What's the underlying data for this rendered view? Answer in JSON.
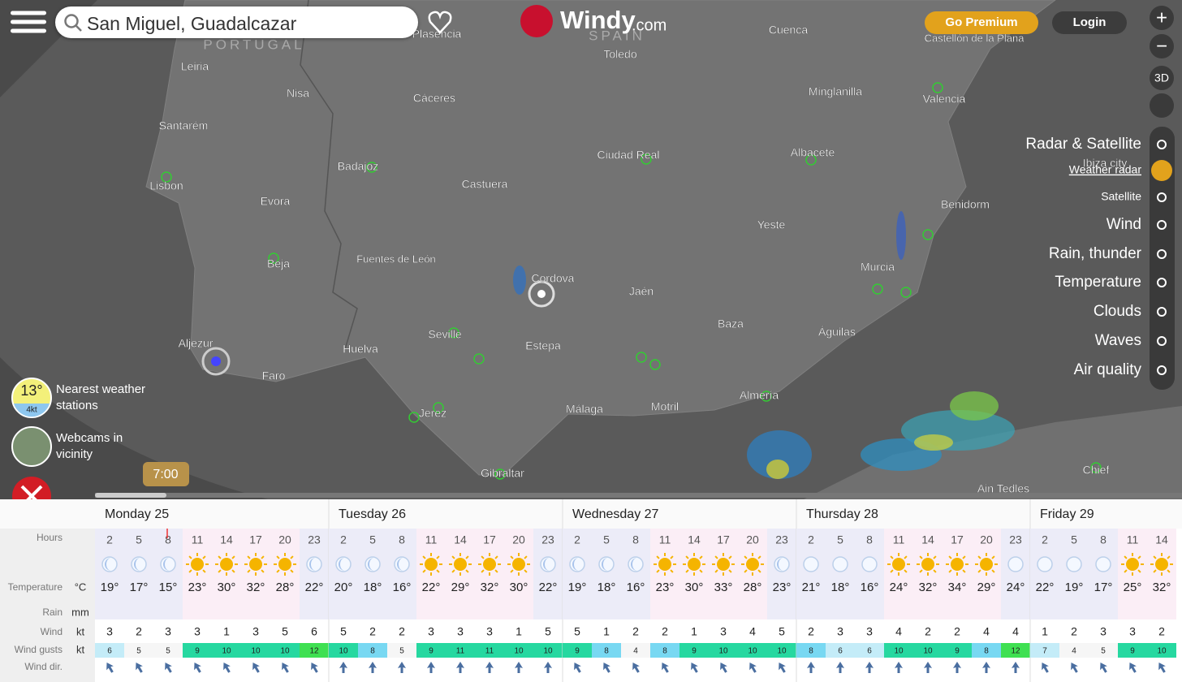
{
  "header": {
    "search": "San Miguel, Guadalcazar",
    "logo": "Windy",
    "logo_suffix": ".com",
    "premium": "Go Premium",
    "login": "Login"
  },
  "map_controls": {
    "view3d": "3D"
  },
  "layers": [
    "Radar & Satellite",
    "Weather radar",
    "Satellite",
    "Wind",
    "Rain, thunder",
    "Temperature",
    "Clouds",
    "Waves",
    "Air quality"
  ],
  "country_labels": [
    "PORTUGAL",
    "SPAIN"
  ],
  "map_labels": [
    "Plasencia",
    "Toledo",
    "Cuenca",
    "Castellón de la Plana",
    "Leiria",
    "Nisa",
    "Cáceres",
    "Minglanilla",
    "Valencia",
    "Santarém",
    "Ciudad Real",
    "Albacete",
    "Ibiza city",
    "Badajoz",
    "Lisbon",
    "Castuera",
    "Evora",
    "Benidorm",
    "Yeste",
    "Beja",
    "Fuentes de León",
    "Murcia",
    "Cordova",
    "Jaén",
    "Baza",
    "Águilas",
    "Aljezur",
    "Seville",
    "Huelva",
    "Estepa",
    "Faro",
    "Jerez",
    "Málaga",
    "Motril",
    "Almería",
    "Gibraltar",
    "Chief",
    "Ain Tedles"
  ],
  "widgets": {
    "temp": "13°",
    "wind": "4kt",
    "stations": "Nearest weather stations",
    "webcams": "Webcams in vicinity"
  },
  "timeline": {
    "time": "7:00"
  },
  "forecast": {
    "rows": [
      {
        "label": "Hours"
      },
      {
        "label": "Temperature",
        "unit": "°C"
      },
      {
        "label": "Rain",
        "unit": "mm"
      },
      {
        "label": "Wind",
        "unit": "kt"
      },
      {
        "label": "Wind gusts",
        "unit": "kt"
      },
      {
        "label": "Wind dir."
      }
    ],
    "days": [
      {
        "title": "Monday 25",
        "hours": [
          2,
          5,
          8,
          11,
          14,
          17,
          20,
          23
        ],
        "sky": [
          "moon",
          "moon",
          "moon",
          "sun",
          "sun",
          "sun",
          "sun",
          "moon"
        ],
        "temperature": [
          "19°",
          "17°",
          "15°",
          "23°",
          "30°",
          "32°",
          "28°",
          "22°"
        ],
        "wind": [
          3,
          2,
          3,
          3,
          1,
          3,
          5,
          6
        ],
        "gusts": [
          6,
          5,
          5,
          9,
          10,
          10,
          10,
          12
        ]
      },
      {
        "title": "Tuesday 26",
        "hours": [
          2,
          5,
          8,
          11,
          14,
          17,
          20,
          23
        ],
        "sky": [
          "moon",
          "moon",
          "moon",
          "sun",
          "sun",
          "sun",
          "sun",
          "moon"
        ],
        "temperature": [
          "20°",
          "18°",
          "16°",
          "22°",
          "29°",
          "32°",
          "30°",
          "22°"
        ],
        "wind": [
          5,
          2,
          2,
          3,
          3,
          3,
          1,
          5
        ],
        "gusts": [
          10,
          8,
          5,
          9,
          11,
          11,
          10,
          10
        ]
      },
      {
        "title": "Wednesday 27",
        "hours": [
          2,
          5,
          8,
          11,
          14,
          17,
          20,
          23
        ],
        "sky": [
          "moon",
          "moon",
          "moon",
          "sun",
          "sun",
          "sun",
          "sun",
          "moon"
        ],
        "temperature": [
          "19°",
          "18°",
          "16°",
          "23°",
          "30°",
          "33°",
          "28°",
          "23°"
        ],
        "wind": [
          5,
          1,
          2,
          2,
          1,
          3,
          4,
          5
        ],
        "gusts": [
          9,
          8,
          4,
          8,
          9,
          10,
          10,
          10
        ]
      },
      {
        "title": "Thursday 28",
        "hours": [
          2,
          5,
          8,
          11,
          14,
          17,
          20,
          23
        ],
        "sky": [
          "clear",
          "clear",
          "clear",
          "sun",
          "sun",
          "sun",
          "sun",
          "clear"
        ],
        "temperature": [
          "21°",
          "18°",
          "16°",
          "24°",
          "32°",
          "34°",
          "29°",
          "24°"
        ],
        "wind": [
          2,
          3,
          3,
          4,
          2,
          2,
          4,
          4
        ],
        "gusts": [
          8,
          6,
          6,
          10,
          10,
          9,
          8,
          12
        ]
      },
      {
        "title": "Friday 29",
        "hours": [
          2,
          5,
          8,
          11,
          14
        ],
        "sky": [
          "clear",
          "clear",
          "clear",
          "sun",
          "sun"
        ],
        "temperature": [
          "22°",
          "19°",
          "17°",
          "25°",
          "32°"
        ],
        "wind": [
          1,
          2,
          3,
          3,
          2
        ],
        "gusts": [
          7,
          4,
          5,
          9,
          10
        ]
      }
    ]
  }
}
